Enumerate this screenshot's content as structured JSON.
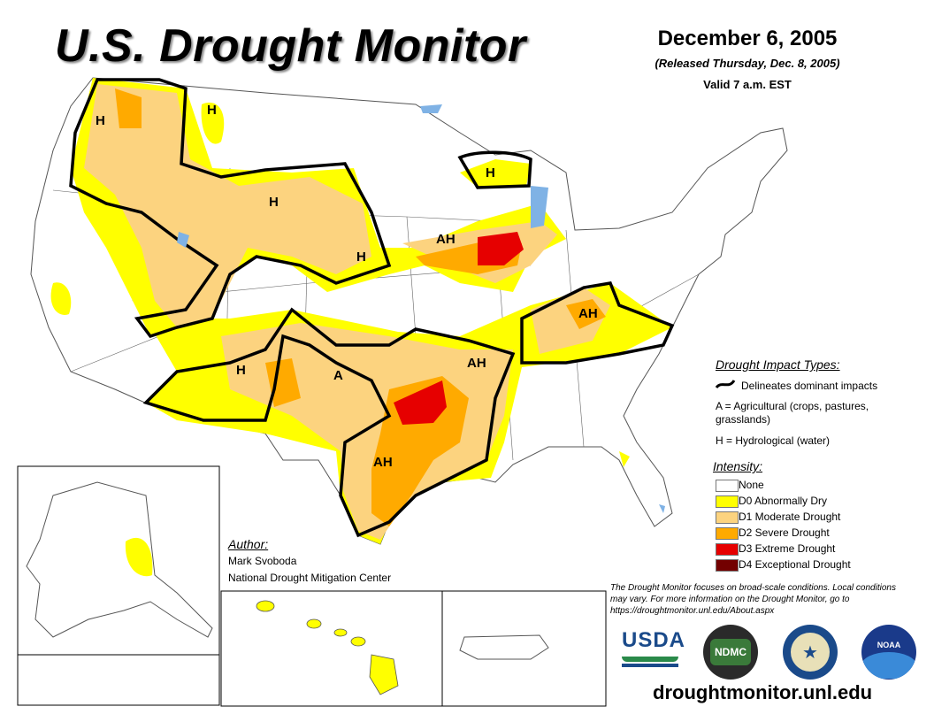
{
  "header": {
    "title": "U.S. Drought Monitor",
    "date": "December 6, 2005",
    "released": "(Released Thursday, Dec. 8, 2005)",
    "valid": "Valid 7 a.m. EST"
  },
  "map_labels": [
    "H",
    "H",
    "H",
    "H",
    "AH",
    "H",
    "AH",
    "H",
    "A",
    "AH",
    "AH"
  ],
  "impact_types": {
    "heading": "Drought Impact Types:",
    "delineates": "Delineates dominant impacts",
    "agricultural": "A = Agricultural (crops, pastures, grasslands)",
    "hydrological": "H = Hydrological (water)"
  },
  "intensity": {
    "heading": "Intensity:",
    "levels": [
      {
        "label": "None",
        "color": "#ffffff"
      },
      {
        "label": "D0 Abnormally Dry",
        "color": "#ffff00"
      },
      {
        "label": "D1 Moderate Drought",
        "color": "#fcd37f"
      },
      {
        "label": "D2 Severe Drought",
        "color": "#ffaa00"
      },
      {
        "label": "D3 Extreme Drought",
        "color": "#e60000"
      },
      {
        "label": "D4 Exceptional Drought",
        "color": "#730000"
      }
    ]
  },
  "author": {
    "heading": "Author:",
    "name": "Mark Svoboda",
    "org": "National Drought Mitigation Center"
  },
  "note": "The Drought Monitor focuses on broad-scale conditions. Local conditions may vary. For more information on the Drought Monitor, go to https://droughtmonitor.unl.edu/About.aspx",
  "logos": {
    "usda": "USDA",
    "ndmc": "NDMC",
    "noaa": "NOAA"
  },
  "website": "droughtmonitor.unl.edu",
  "colors": {
    "d0": "#ffff00",
    "d1": "#fcd37f",
    "d2": "#ffaa00",
    "d3": "#e60000",
    "d4": "#730000",
    "water": "#7fb2e5",
    "border": "#000000"
  }
}
